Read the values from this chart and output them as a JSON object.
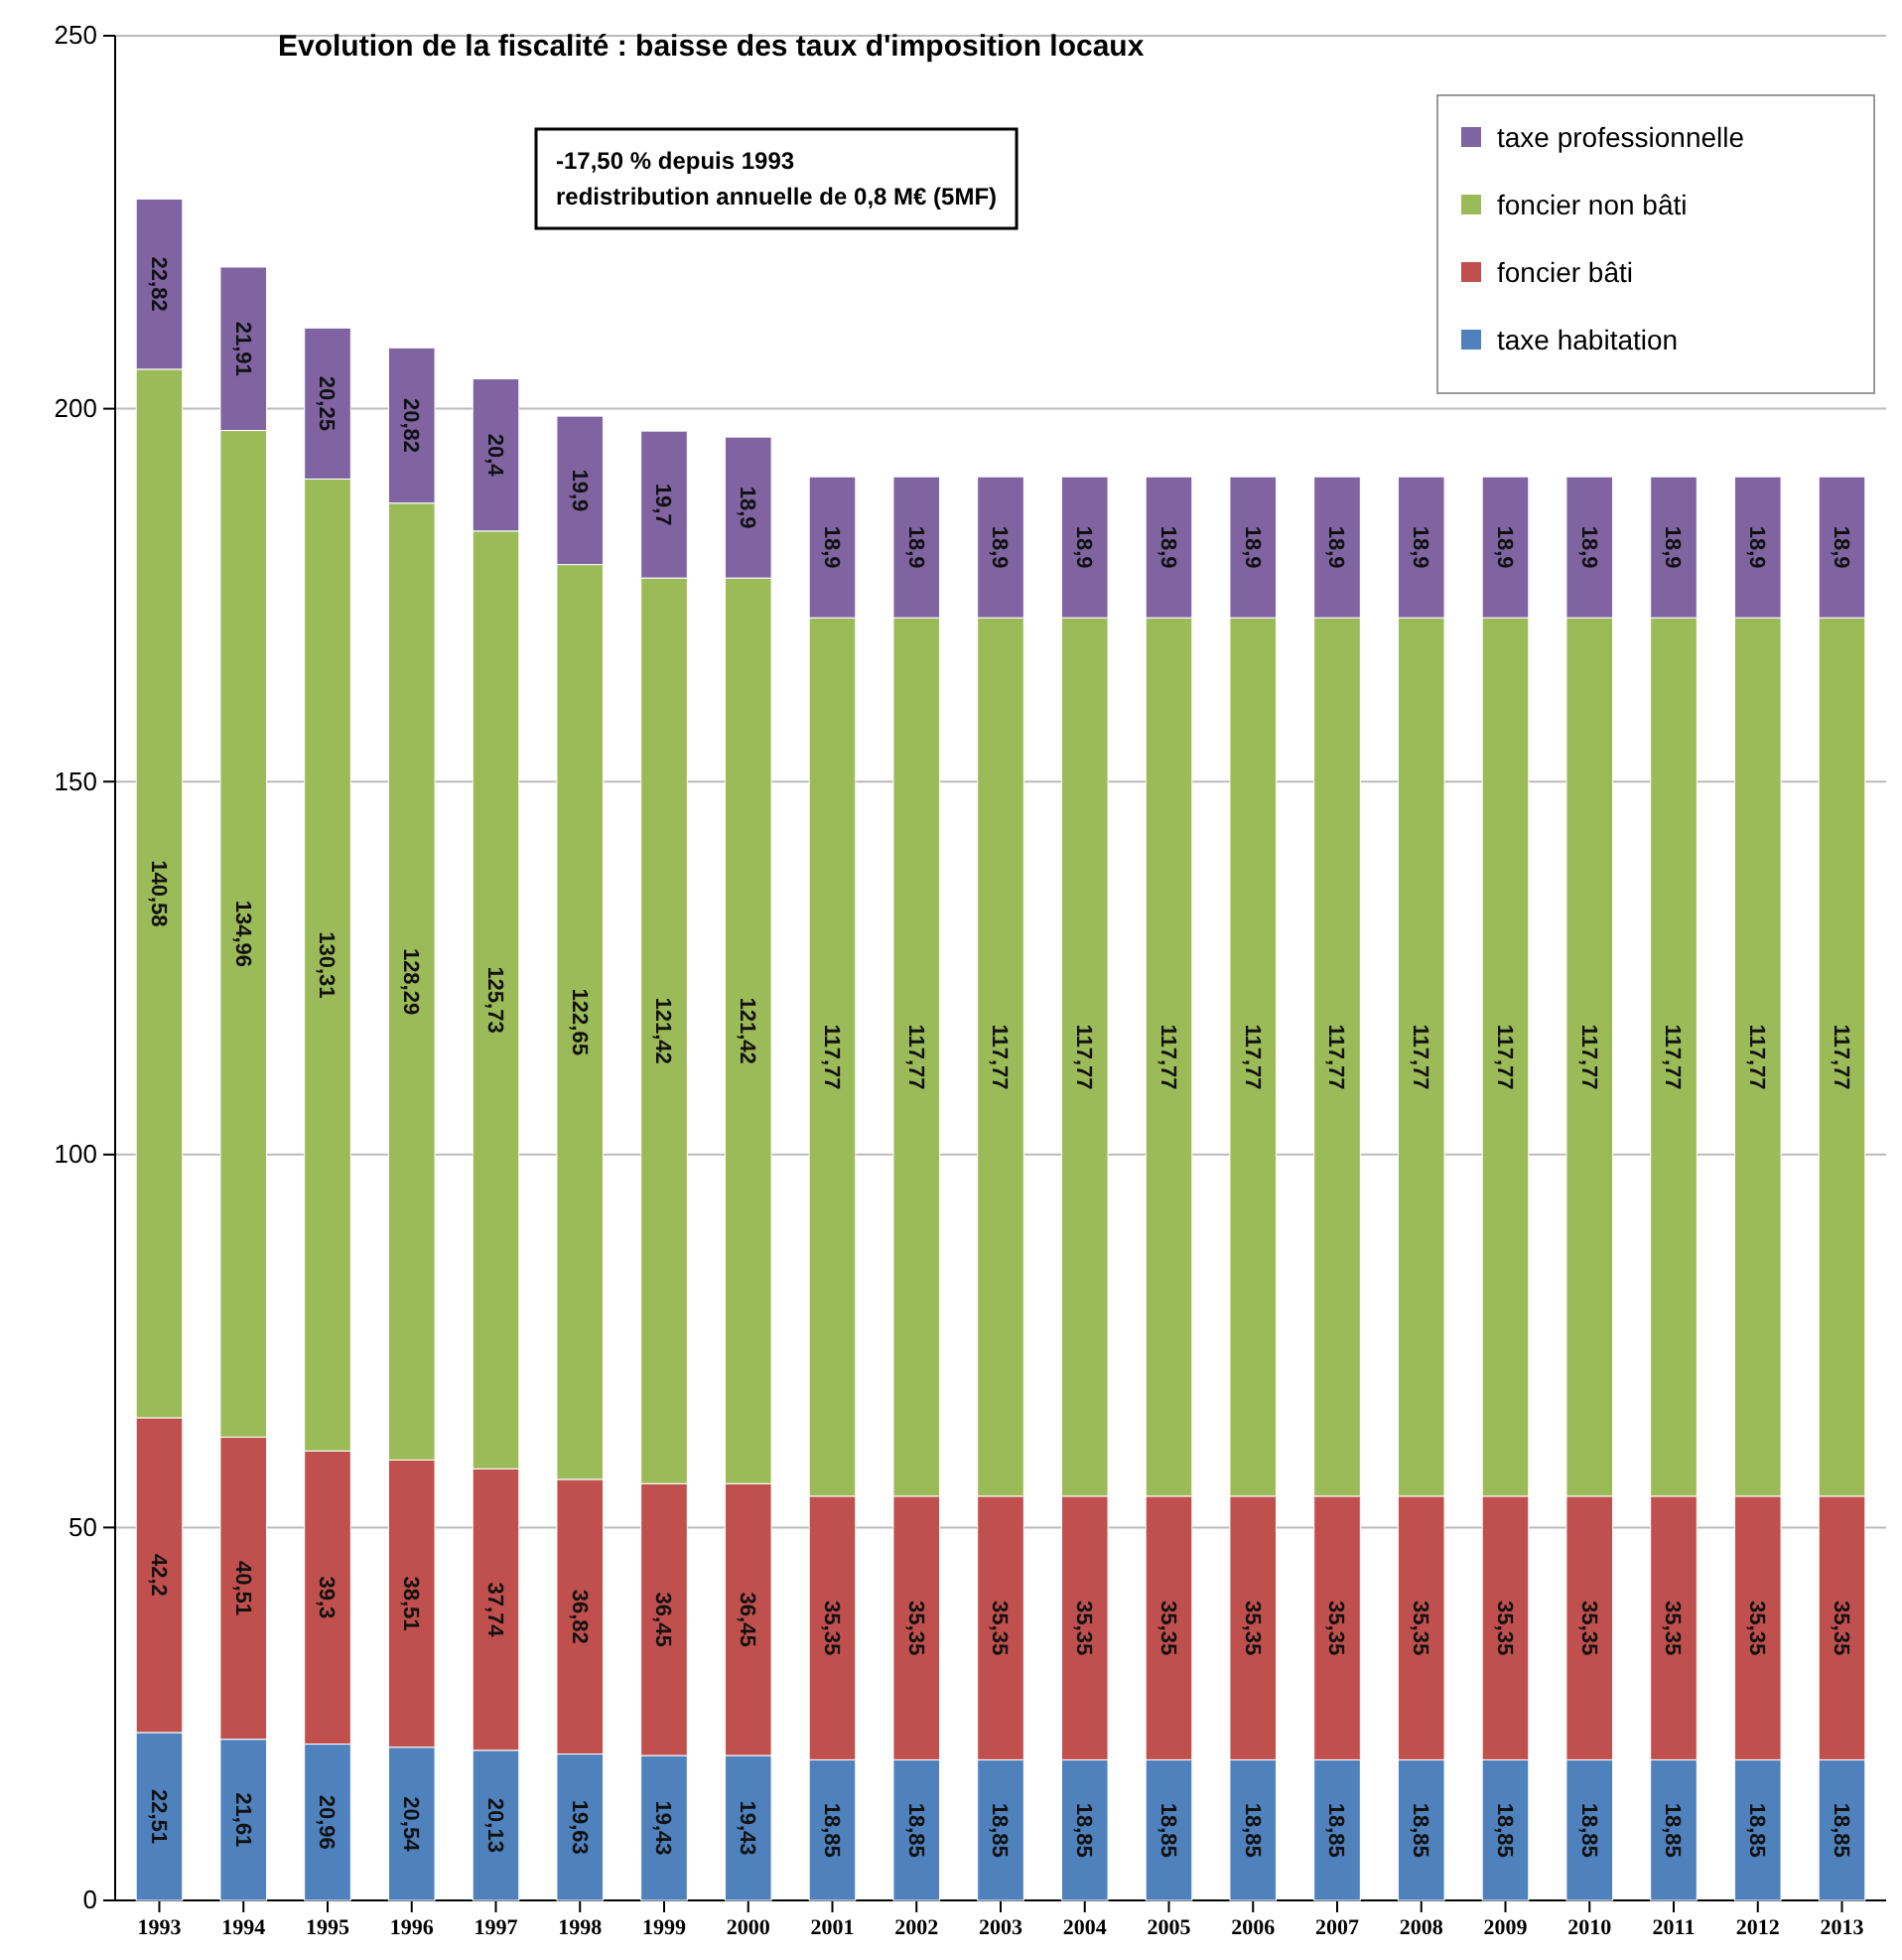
{
  "chart_data": {
    "type": "bar",
    "title": "Evolution de la fiscalité : baisse des taux d'imposition locaux",
    "annotations": [
      "-17,50 % depuis 1993",
      "redistribution annuelle de 0,8 M€ (5MF)"
    ],
    "categories": [
      "1993",
      "1994",
      "1995",
      "1996",
      "1997",
      "1998",
      "1999",
      "2000",
      "2001",
      "2002",
      "2003",
      "2004",
      "2005",
      "2006",
      "2007",
      "2008",
      "2009",
      "2010",
      "2011",
      "2012",
      "2013"
    ],
    "stacked": true,
    "ylim": [
      0,
      250
    ],
    "yticks": [
      0,
      50,
      100,
      150,
      200,
      250
    ],
    "grid": "y",
    "legend": "top right",
    "series": [
      {
        "name": "taxe habitation",
        "color": "#4f81bd",
        "values": [
          22.51,
          21.61,
          20.96,
          20.54,
          20.13,
          19.63,
          19.43,
          19.43,
          18.85,
          18.85,
          18.85,
          18.85,
          18.85,
          18.85,
          18.85,
          18.85,
          18.85,
          18.85,
          18.85,
          18.85,
          18.85
        ],
        "value_labels": [
          "22,51",
          "21,61",
          "20,96",
          "20,54",
          "20,13",
          "19,63",
          "19,43",
          "19,43",
          "18,85",
          "18,85",
          "18,85",
          "18,85",
          "18,85",
          "18,85",
          "18,85",
          "18,85",
          "18,85",
          "18,85",
          "18,85",
          "18,85",
          "18,85"
        ]
      },
      {
        "name": "foncier bâti",
        "color": "#c0504d",
        "values": [
          42.2,
          40.51,
          39.3,
          38.51,
          37.74,
          36.82,
          36.45,
          36.45,
          35.35,
          35.35,
          35.35,
          35.35,
          35.35,
          35.35,
          35.35,
          35.35,
          35.35,
          35.35,
          35.35,
          35.35,
          35.35
        ],
        "value_labels": [
          "42,2",
          "40,51",
          "39,3",
          "38,51",
          "37,74",
          "36,82",
          "36,45",
          "36,45",
          "35,35",
          "35,35",
          "35,35",
          "35,35",
          "35,35",
          "35,35",
          "35,35",
          "35,35",
          "35,35",
          "35,35",
          "35,35",
          "35,35",
          "35,35"
        ]
      },
      {
        "name": "foncier non bâti",
        "color": "#9bbb59",
        "values": [
          140.58,
          134.96,
          130.31,
          128.29,
          125.73,
          122.65,
          121.42,
          121.42,
          117.77,
          117.77,
          117.77,
          117.77,
          117.77,
          117.77,
          117.77,
          117.77,
          117.77,
          117.77,
          117.77,
          117.77,
          117.77
        ],
        "value_labels": [
          "140,58",
          "134,96",
          "130,31",
          "128,29",
          "125,73",
          "122,65",
          "121,42",
          "121,42",
          "117,77",
          "117,77",
          "117,77",
          "117,77",
          "117,77",
          "117,77",
          "117,77",
          "117,77",
          "117,77",
          "117,77",
          "117,77",
          "117,77",
          "117,77"
        ]
      },
      {
        "name": "taxe professionnelle",
        "color": "#8064a2",
        "values": [
          22.82,
          21.91,
          20.25,
          20.82,
          20.4,
          19.9,
          19.7,
          18.9,
          18.9,
          18.9,
          18.9,
          18.9,
          18.9,
          18.9,
          18.9,
          18.9,
          18.9,
          18.9,
          18.9,
          18.9,
          18.9
        ],
        "value_labels": [
          "22,82",
          "21,91",
          "20,25",
          "20,82",
          "20,4",
          "19,9",
          "19,7",
          "18,9",
          "18,9",
          "18,9",
          "18,9",
          "18,9",
          "18,9",
          "18,9",
          "18,9",
          "18,9",
          "18,9",
          "18,9",
          "18,9",
          "18,9",
          "18,9"
        ]
      }
    ]
  }
}
